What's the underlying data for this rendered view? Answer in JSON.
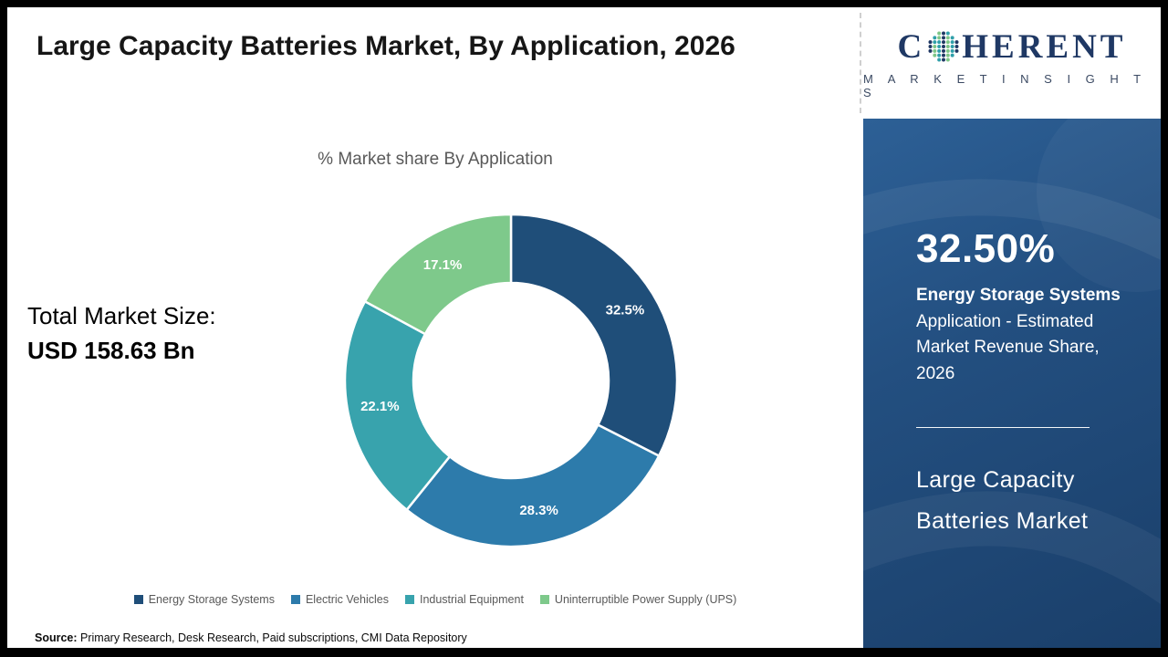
{
  "title": "Large Capacity Batteries Market, By Application, 2026",
  "total_market": {
    "label": "Total Market Size:",
    "value": "USD 158.63 Bn"
  },
  "chart_data": {
    "type": "pie",
    "donut": true,
    "title": "% Market share By Application",
    "categories": [
      "Energy Storage Systems",
      "Electric Vehicles",
      "Industrial Equipment",
      "Uninterruptible Power Supply (UPS)"
    ],
    "values": [
      32.5,
      28.3,
      22.1,
      17.1
    ],
    "labels": [
      "32.5%",
      "28.3%",
      "22.1%",
      "17.1%"
    ],
    "colors": [
      "#1f4e79",
      "#2d7bab",
      "#38a3ad",
      "#7ec98b"
    ],
    "unit": "%",
    "start_angle_deg": 0,
    "legend_position": "bottom"
  },
  "sidebar": {
    "stat_value": "32.50%",
    "stat_label_bold": "Energy Storage Systems",
    "stat_label_rest": "Application - Estimated Market Revenue Share, 2026",
    "market_name_line1": "Large Capacity",
    "market_name_line2": "Batteries Market",
    "bg_color": "#1f4e7b"
  },
  "logo": {
    "line1_prefix": "C",
    "line1_suffix": "HERENT",
    "line2": "M A R K E T   I N S I G H T S",
    "color": "#1f3864",
    "sphere_colors": [
      "#1f3864",
      "#2f9fa9",
      "#7dc687"
    ]
  },
  "source": {
    "label": "Source:",
    "text": " Primary Research, Desk Research, Paid subscriptions, CMI Data Repository"
  }
}
